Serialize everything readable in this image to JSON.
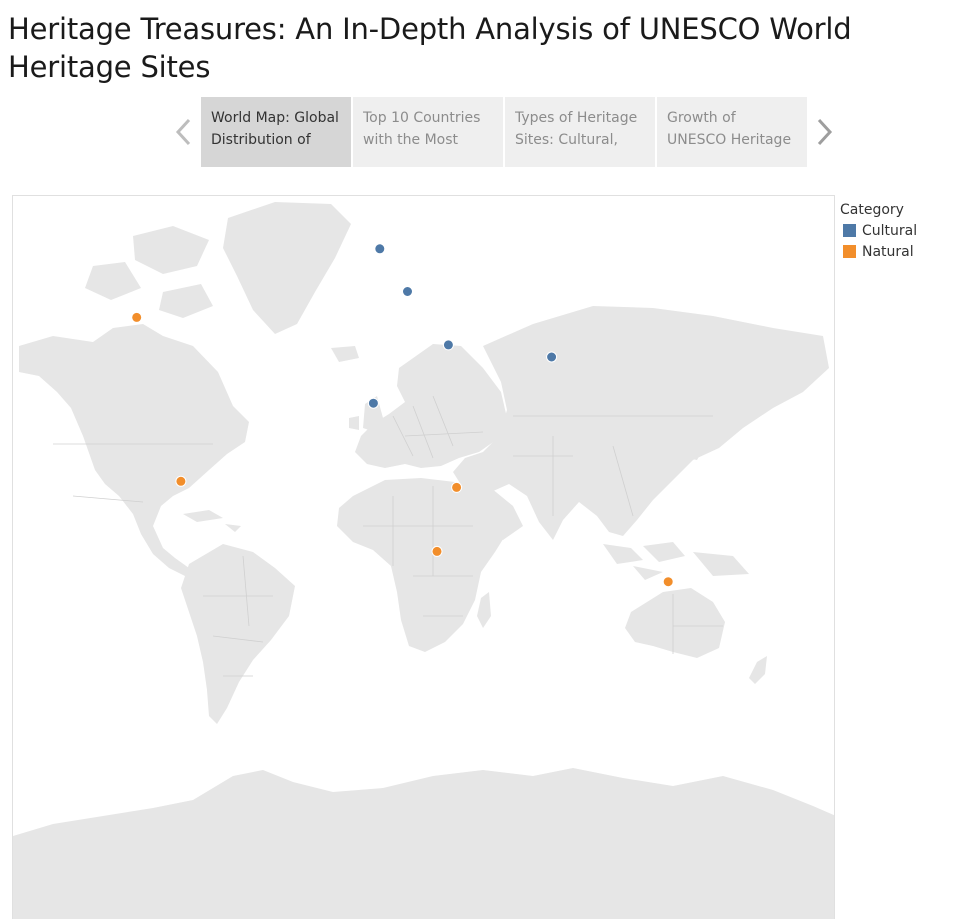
{
  "title": "Heritage Treasures: An In-Depth Analysis of UNESCO World Heritage Sites",
  "story": {
    "points": [
      {
        "line1": "World Map: Global",
        "line2": "Distribution of",
        "active": true
      },
      {
        "line1": "Top 10 Countries",
        "line2": "with the Most",
        "active": false
      },
      {
        "line1": "Types of Heritage",
        "line2": "Sites: Cultural,",
        "active": false
      },
      {
        "line1": "Growth of",
        "line2": "UNESCO Heritage",
        "active": false
      }
    ],
    "prev_icon": "chevron-left-icon",
    "next_icon": "chevron-right-icon"
  },
  "legend": {
    "title": "Category",
    "items": [
      {
        "label": "Cultural",
        "color": "#4e79a7"
      },
      {
        "label": "Natural",
        "color": "#f28e2b"
      }
    ]
  },
  "map": {
    "land_color": "#e6e6e6",
    "border_color": "#d0d0d0",
    "sites": [
      {
        "category": "Cultural",
        "lon": -0.1,
        "lat": 51.5
      },
      {
        "category": "Cultural",
        "lon": 12.5,
        "lat": 41.9
      },
      {
        "category": "Cultural",
        "lon": 31.1,
        "lat": 29.9
      },
      {
        "category": "Cultural",
        "lon": -3.0,
        "lat": 16.8
      },
      {
        "category": "Cultural",
        "lon": 78.0,
        "lat": 27.2
      },
      {
        "category": "Natural",
        "lon": -110.6,
        "lat": 36.1
      },
      {
        "category": "Natural",
        "lon": -90.5,
        "lat": -0.8
      },
      {
        "category": "Natural",
        "lon": 34.8,
        "lat": -2.3
      },
      {
        "category": "Natural",
        "lon": 25.9,
        "lat": -17.9
      },
      {
        "category": "Natural",
        "lon": 131.0,
        "lat": -25.3
      }
    ]
  }
}
